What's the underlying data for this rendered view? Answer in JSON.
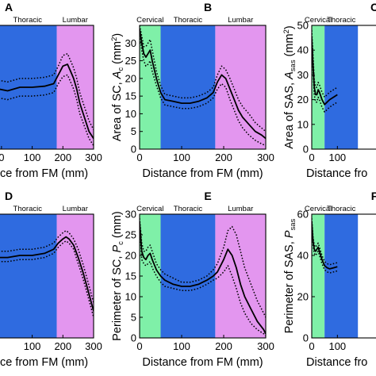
{
  "colors": {
    "cervical": "#7ff0a8",
    "thoracic": "#2f6be0",
    "lumbar": "#e396ef",
    "line": "#000000"
  },
  "chart_data": [
    {
      "id": "A",
      "panel_label": "A",
      "type": "line",
      "xlabel": "Distance from FM (mm)",
      "ylabel": "",
      "xlim": [
        -10,
        300
      ],
      "ylim": [
        0,
        35
      ],
      "xticks": [
        0,
        100,
        200,
        300
      ],
      "yticks": [],
      "regions": [
        {
          "name": "Thoracic",
          "from": -10,
          "to": 180,
          "color": "thoracic"
        },
        {
          "name": "Lumbar",
          "from": 180,
          "to": 300,
          "color": "lumbar"
        }
      ],
      "series": [
        {
          "style": "solid",
          "x": [
            -10,
            20,
            60,
            100,
            140,
            170,
            185,
            200,
            215,
            225,
            235,
            245,
            255,
            270,
            285,
            300
          ],
          "y": [
            17,
            16.5,
            17.5,
            17.5,
            17.8,
            18.5,
            21,
            23.5,
            24,
            22,
            20,
            17,
            13,
            9,
            5,
            3
          ]
        },
        {
          "style": "dotted",
          "x": [
            -10,
            20,
            60,
            100,
            140,
            170,
            185,
            200,
            215,
            225,
            235,
            245,
            255,
            270,
            285,
            300
          ],
          "y": [
            19.5,
            19,
            20,
            20,
            20.3,
            21,
            23.5,
            26.5,
            27,
            25,
            23,
            20,
            16,
            12,
            8,
            5.5
          ]
        },
        {
          "style": "dotted",
          "x": [
            -10,
            20,
            60,
            100,
            140,
            170,
            185,
            200,
            215,
            225,
            235,
            245,
            255,
            270,
            285,
            300
          ],
          "y": [
            14.5,
            14,
            15,
            15,
            15.3,
            16,
            18.5,
            20.5,
            21,
            19,
            17,
            14,
            10,
            6.5,
            3,
            1
          ]
        }
      ]
    },
    {
      "id": "B",
      "panel_label": "B",
      "type": "line",
      "xlabel": "Distance from FM (mm)",
      "ylabel_main": "Area of SC, ",
      "ylabel_var": "A",
      "ylabel_sub": "c",
      "ylabel_unit": " (mm",
      "ylabel_sup": "2",
      "ylabel_end": ")",
      "xlim": [
        0,
        300
      ],
      "ylim": [
        0,
        35
      ],
      "xticks": [
        0,
        100,
        200,
        300
      ],
      "yticks": [
        0,
        5,
        10,
        15,
        20,
        25,
        30
      ],
      "regions": [
        {
          "name": "Cervical",
          "from": 0,
          "to": 50,
          "color": "cervical"
        },
        {
          "name": "Thoracic",
          "from": 50,
          "to": 180,
          "color": "thoracic"
        },
        {
          "name": "Lumbar",
          "from": 180,
          "to": 300,
          "color": "lumbar"
        }
      ],
      "series": [
        {
          "style": "solid",
          "x": [
            0,
            5,
            10,
            15,
            20,
            25,
            30,
            40,
            50,
            60,
            80,
            100,
            120,
            140,
            160,
            175,
            185,
            195,
            205,
            215,
            225,
            235,
            245,
            260,
            275,
            290,
            300
          ],
          "y": [
            34,
            30,
            27,
            26,
            27,
            28,
            25,
            20,
            16,
            14,
            13.5,
            13,
            13,
            13.5,
            14.5,
            16,
            19,
            21,
            20,
            17,
            14,
            11,
            9,
            7,
            5,
            4,
            3
          ]
        },
        {
          "style": "dotted",
          "x": [
            0,
            5,
            10,
            15,
            20,
            25,
            30,
            40,
            50,
            60,
            80,
            100,
            120,
            140,
            160,
            175,
            185,
            195,
            205,
            215,
            225,
            235,
            245,
            260,
            275,
            290,
            300
          ],
          "y": [
            35,
            32,
            29,
            29,
            30,
            31,
            28,
            22,
            18,
            15.5,
            15,
            14.5,
            14.5,
            15,
            16,
            17.5,
            21,
            23.5,
            22.5,
            20,
            17,
            14,
            12,
            10,
            7.5,
            6,
            5
          ]
        },
        {
          "style": "dotted",
          "x": [
            0,
            5,
            10,
            15,
            20,
            25,
            30,
            40,
            50,
            60,
            80,
            100,
            120,
            140,
            160,
            175,
            185,
            195,
            205,
            215,
            225,
            235,
            245,
            260,
            275,
            290,
            300
          ],
          "y": [
            33,
            28,
            25,
            23.5,
            24,
            25,
            22,
            18,
            14.5,
            12.5,
            12,
            11.5,
            11.5,
            12,
            13,
            14.5,
            17,
            18.5,
            17.5,
            14,
            11,
            8,
            6,
            4,
            2.5,
            1.5,
            1
          ]
        }
      ]
    },
    {
      "id": "C",
      "panel_label": "C",
      "type": "line",
      "xlabel": "Distance fro",
      "ylabel_main": "Area of SAS, ",
      "ylabel_var": "A",
      "ylabel_sub": "sas",
      "ylabel_unit": " (mm",
      "ylabel_sup": "2",
      "ylabel_end": ")",
      "xlim": [
        0,
        300
      ],
      "ylim": [
        0,
        50
      ],
      "xticks": [
        0,
        100
      ],
      "yticks": [
        0,
        10,
        20,
        30,
        40,
        50
      ],
      "regions": [
        {
          "name": "Cervical",
          "from": 0,
          "to": 50,
          "color": "cervical"
        },
        {
          "name": "Thoracic",
          "from": 50,
          "to": 180,
          "color": "thoracic"
        }
      ],
      "series": [
        {
          "style": "solid",
          "x": [
            0,
            5,
            10,
            15,
            20,
            25,
            30,
            40,
            50,
            60,
            70,
            85,
            100
          ],
          "y": [
            45,
            34,
            25,
            22,
            22,
            24,
            23,
            20,
            18,
            19,
            20,
            21,
            22
          ]
        },
        {
          "style": "dotted",
          "x": [
            0,
            5,
            10,
            15,
            20,
            25,
            30,
            40,
            50,
            60,
            70,
            85,
            100
          ],
          "y": [
            48,
            38,
            28,
            25,
            25,
            27,
            26,
            23,
            21,
            22,
            23,
            24,
            25
          ]
        },
        {
          "style": "dotted",
          "x": [
            0,
            5,
            10,
            15,
            20,
            25,
            30,
            40,
            50,
            60,
            70,
            85,
            100
          ],
          "y": [
            42,
            31,
            22,
            19,
            19,
            21,
            20,
            17,
            15,
            16,
            17,
            18,
            19
          ]
        }
      ]
    },
    {
      "id": "D",
      "panel_label": "D",
      "type": "line",
      "xlabel": "Distance from FM (mm)",
      "ylabel": "",
      "xlim": [
        -10,
        300
      ],
      "ylim": [
        0,
        30
      ],
      "xticks": [
        100,
        200,
        300
      ],
      "yticks": [],
      "regions": [
        {
          "name": "Thoracic",
          "from": -10,
          "to": 180,
          "color": "thoracic"
        },
        {
          "name": "Lumbar",
          "from": 180,
          "to": 300,
          "color": "lumbar"
        }
      ],
      "series": [
        {
          "style": "solid",
          "x": [
            -10,
            20,
            60,
            100,
            140,
            170,
            185,
            200,
            210,
            220,
            235,
            250,
            265,
            280,
            300
          ],
          "y": [
            19.5,
            19.5,
            20,
            20,
            20.5,
            21.5,
            23,
            24,
            24.5,
            24,
            22.5,
            19.5,
            16,
            12,
            6.5
          ]
        },
        {
          "style": "dotted",
          "x": [
            -10,
            20,
            60,
            100,
            140,
            170,
            185,
            200,
            210,
            220,
            235,
            250,
            265,
            280,
            300
          ],
          "y": [
            21,
            21,
            21.5,
            21.5,
            22,
            23,
            24.5,
            25.5,
            26,
            25.5,
            24,
            21.5,
            18,
            14,
            8.5
          ]
        },
        {
          "style": "dotted",
          "x": [
            -10,
            20,
            60,
            100,
            140,
            170,
            185,
            200,
            210,
            220,
            235,
            250,
            265,
            280,
            300
          ],
          "y": [
            18.5,
            18.5,
            19,
            19,
            19.5,
            20.5,
            22,
            23,
            23.5,
            23,
            21.5,
            18,
            14.5,
            10.5,
            5
          ]
        }
      ]
    },
    {
      "id": "E",
      "panel_label": "E",
      "type": "line",
      "xlabel": "Distance from FM (mm)",
      "ylabel_main": "Perimeter of SC, ",
      "ylabel_var": "P",
      "ylabel_sub": "c",
      "ylabel_unit": " (mm)",
      "ylabel_sup": "",
      "ylabel_end": "",
      "xlim": [
        0,
        300
      ],
      "ylim": [
        0,
        30
      ],
      "xticks": [
        0,
        100,
        200,
        300
      ],
      "yticks": [
        0,
        5,
        10,
        15,
        20,
        25,
        30
      ],
      "regions": [
        {
          "name": "Cervical",
          "from": 0,
          "to": 50,
          "color": "cervical"
        },
        {
          "name": "Thoracic",
          "from": 50,
          "to": 180,
          "color": "thoracic"
        },
        {
          "name": "Lumbar",
          "from": 180,
          "to": 300,
          "color": "lumbar"
        }
      ],
      "series": [
        {
          "style": "solid",
          "x": [
            0,
            5,
            10,
            15,
            20,
            25,
            30,
            40,
            50,
            60,
            80,
            100,
            120,
            140,
            160,
            175,
            185,
            200,
            210,
            220,
            230,
            240,
            250,
            265,
            280,
            295,
            300
          ],
          "y": [
            28,
            21,
            19.5,
            19,
            20,
            20.5,
            19,
            16.5,
            15,
            14,
            13,
            12.5,
            12.5,
            13,
            14,
            15,
            16,
            19,
            21.5,
            20,
            17,
            13,
            10,
            7,
            4,
            2,
            1
          ]
        },
        {
          "style": "dotted",
          "x": [
            0,
            5,
            10,
            15,
            20,
            25,
            30,
            40,
            50,
            60,
            80,
            100,
            120,
            140,
            160,
            175,
            185,
            200,
            210,
            220,
            230,
            240,
            250,
            265,
            280,
            295,
            300
          ],
          "y": [
            29,
            23,
            21,
            21,
            22,
            22.5,
            21,
            18,
            16.5,
            15.5,
            14.5,
            13.5,
            13.5,
            14,
            15,
            16.5,
            18,
            22,
            26,
            27,
            25,
            21,
            17,
            13,
            9,
            6,
            5
          ]
        },
        {
          "style": "dotted",
          "x": [
            0,
            5,
            10,
            15,
            20,
            25,
            30,
            40,
            50,
            60,
            80,
            100,
            120,
            140,
            160,
            175,
            185,
            200,
            210,
            220,
            230,
            240,
            250,
            265,
            280,
            295,
            300
          ],
          "y": [
            27,
            19,
            18,
            17.5,
            18,
            18.5,
            17,
            15,
            13.5,
            12.5,
            12,
            11.5,
            11.5,
            12,
            13,
            14,
            14.5,
            16,
            17.5,
            15,
            12,
            8.5,
            6,
            3.5,
            2,
            1,
            0.5
          ]
        }
      ]
    },
    {
      "id": "F",
      "panel_label": "F",
      "type": "line",
      "xlabel": "Distance fro",
      "ylabel_main": "Perimeter of SAS, ",
      "ylabel_var": "P",
      "ylabel_sub": "sas",
      "ylabel_unit": "",
      "ylabel_sup": "",
      "ylabel_end": "",
      "xlim": [
        0,
        300
      ],
      "ylim": [
        0,
        60
      ],
      "xticks": [
        0,
        100
      ],
      "yticks": [
        0,
        20,
        40,
        60
      ],
      "regions": [
        {
          "name": "Cervical",
          "from": 0,
          "to": 50,
          "color": "cervical"
        },
        {
          "name": "Thoracic",
          "from": 50,
          "to": 180,
          "color": "thoracic"
        }
      ],
      "series": [
        {
          "style": "solid",
          "x": [
            0,
            5,
            10,
            15,
            20,
            25,
            30,
            40,
            50,
            60,
            70,
            85,
            100
          ],
          "y": [
            56,
            47,
            43,
            42,
            43,
            44,
            42,
            38,
            35,
            34,
            33.5,
            34,
            34.5
          ]
        },
        {
          "style": "dotted",
          "x": [
            0,
            5,
            10,
            15,
            20,
            25,
            30,
            40,
            50,
            60,
            70,
            85,
            100
          ],
          "y": [
            58,
            49,
            45,
            44,
            45,
            46,
            44,
            40,
            37,
            36,
            35.5,
            36,
            36.5
          ]
        },
        {
          "style": "dotted",
          "x": [
            0,
            5,
            10,
            15,
            20,
            25,
            30,
            40,
            50,
            60,
            70,
            85,
            100
          ],
          "y": [
            54,
            45,
            41,
            40,
            41,
            42,
            40,
            36,
            33,
            32,
            31.5,
            32,
            32.5
          ]
        }
      ]
    }
  ]
}
